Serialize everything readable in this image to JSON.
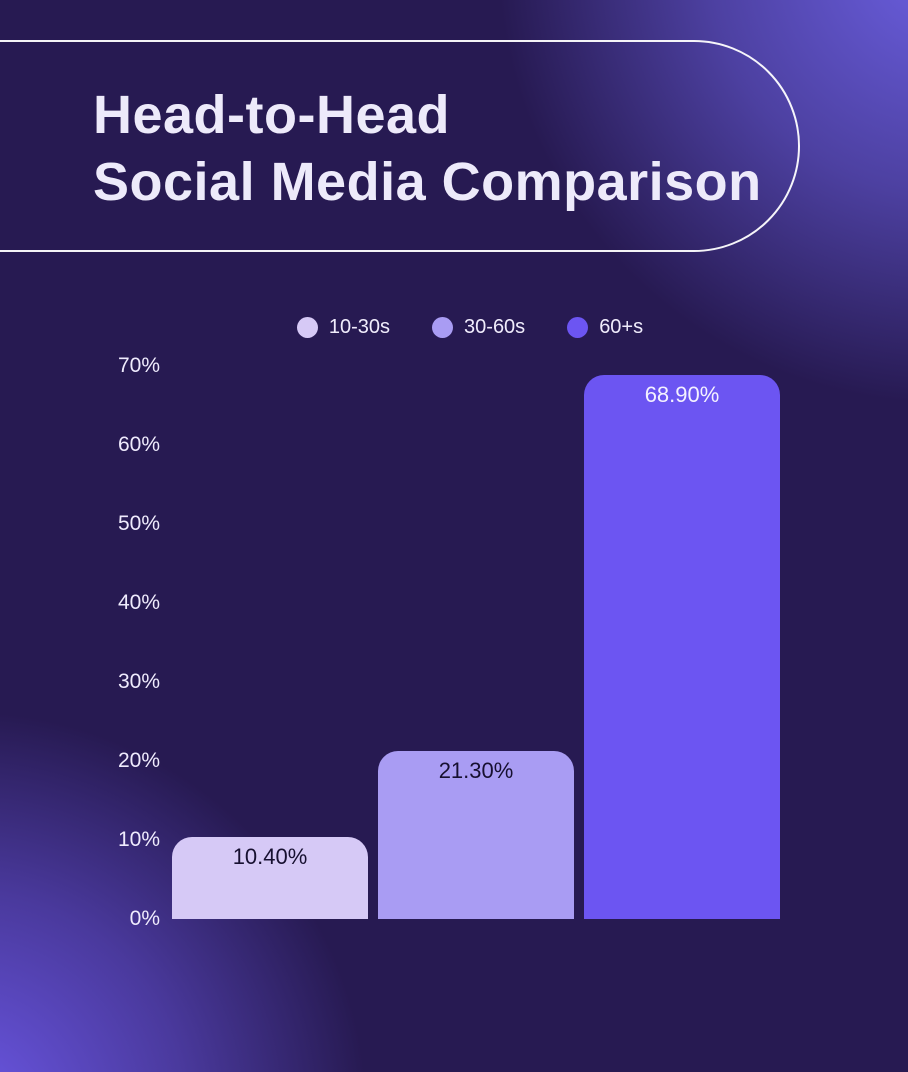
{
  "header": {
    "title_line1": "Head-to-Head",
    "title_line2": "Social Media Comparison"
  },
  "chart_data": {
    "type": "bar",
    "title": "Head-to-Head Social Media Comparison",
    "categories": [
      "10-30s",
      "30-60s",
      "60+s"
    ],
    "values": [
      10.4,
      21.3,
      68.9
    ],
    "value_labels": [
      "10.40%",
      "21.30%",
      "68.90%"
    ],
    "xlabel": "",
    "ylabel": "",
    "ylim": [
      0,
      70
    ],
    "y_ticks": [
      "70%",
      "60%",
      "50%",
      "40%",
      "30%",
      "20%",
      "10%",
      "0%"
    ],
    "grid": false,
    "legend_position": "top-center",
    "bar_colors": [
      "#d6c9f6",
      "#a99cf3",
      "#6c55f2"
    ],
    "value_label_colors": [
      "#171030",
      "#171030",
      "#f4f1ff"
    ]
  },
  "legend": {
    "items": [
      {
        "label": "10-30s",
        "color": "#d6c9f6"
      },
      {
        "label": "30-60s",
        "color": "#a99cf3"
      },
      {
        "label": "60+s",
        "color": "#6c55f2"
      }
    ]
  },
  "colors": {
    "background_dark": "#271a52",
    "glow_purple": "#6c60e2",
    "title_text": "#edeafa",
    "axis_text": "#efebfd",
    "pill_outline": "#ffffff"
  }
}
